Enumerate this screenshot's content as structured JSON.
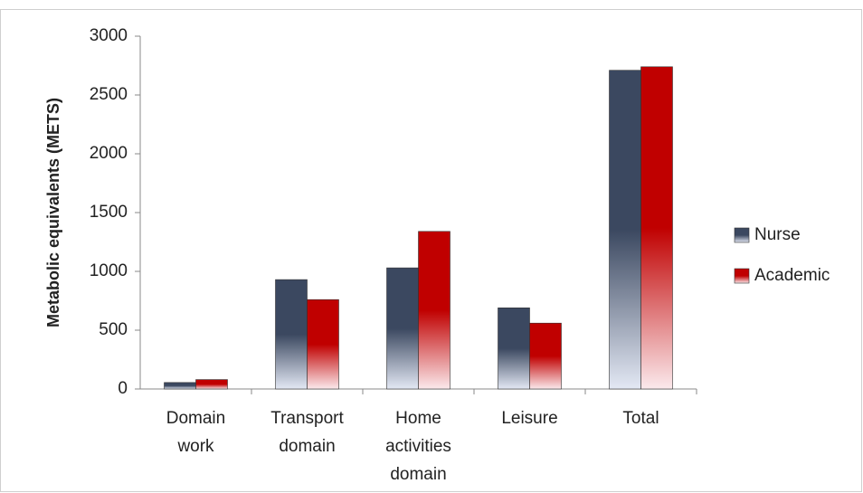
{
  "chart_data": {
    "type": "bar",
    "y_label": "Metabolic equivalents (METS)",
    "categories": [
      "Domain work",
      "Transport domain",
      "Home activities domain",
      "Leisure",
      "Total"
    ],
    "series": [
      {
        "name": "Nurse",
        "color": "#3b4860",
        "values": [
          55,
          930,
          1030,
          690,
          2710
        ]
      },
      {
        "name": "Academic",
        "color": "#c00000",
        "values": [
          80,
          760,
          1340,
          560,
          2740
        ]
      }
    ],
    "ylim": [
      0,
      3000
    ],
    "yticks": [
      0,
      500,
      1000,
      1500,
      2000,
      2500,
      3000
    ],
    "legend": "right"
  }
}
